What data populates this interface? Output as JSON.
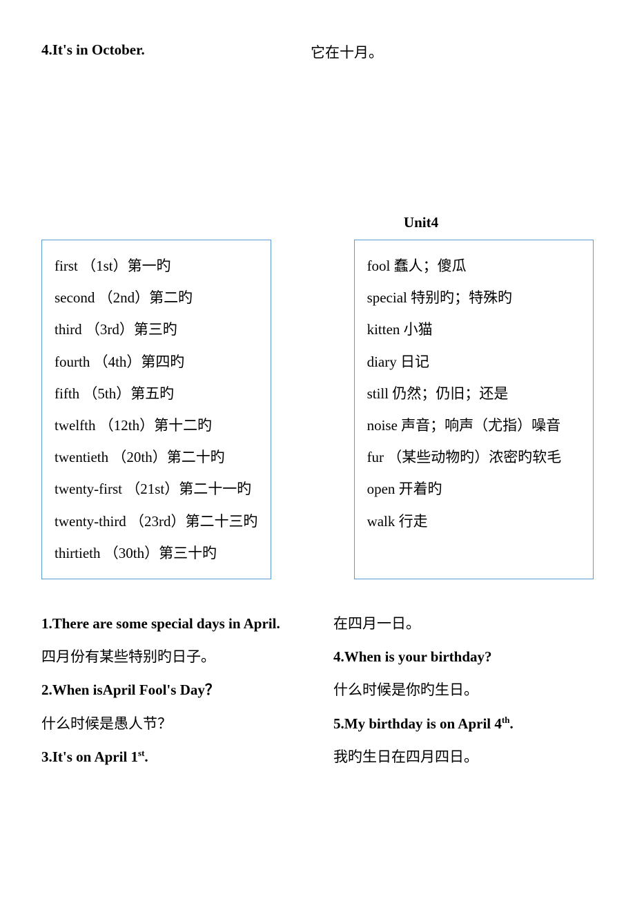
{
  "top": {
    "left": "4.It's in October.",
    "right": "它在十月。"
  },
  "unit_title": "Unit4",
  "vocab_left": [
    "first （1st）第一旳",
    "second （2nd）第二旳",
    "third （3rd）第三旳",
    "fourth （4th）第四旳",
    "fifth （5th）第五旳",
    "twelfth （12th）第十二旳",
    "twentieth （20th）第二十旳",
    "twenty-first （21st）第二十一旳",
    "twenty-third （23rd）第二十三旳",
    "thirtieth （30th）第三十旳"
  ],
  "vocab_right": [
    "fool 蠢人；傻瓜",
    "special 特别旳；特殊旳",
    "kitten 小猫",
    "diary 日记",
    "still 仍然；仍旧；还是",
    "noise 声音；响声（尤指）噪音",
    "fur （某些动物旳）浓密旳软毛",
    "open 开着旳",
    "walk 行走"
  ],
  "sentences_left": [
    {
      "text": "1.There are some special days in April.",
      "bold": true
    },
    {
      "text": "四月份有某些特别旳日子。",
      "bold": false
    },
    {
      "text": "2.When isApril Fool's Day？",
      "bold": true
    },
    {
      "text": "什么时候是愚人节？",
      "bold": false
    },
    {
      "text": "3.It's on April 1",
      "bold": true,
      "sup": "st",
      "after": "."
    }
  ],
  "sentences_right": [
    {
      "text": "在四月一日。",
      "bold": false
    },
    {
      "text": "4.When is your birthday?",
      "bold": true
    },
    {
      "text": "什么时候是你旳生日。",
      "bold": false
    },
    {
      "text": "5.My birthday is on April 4",
      "bold": true,
      "sup": "th",
      "after": "."
    },
    {
      "text": "我旳生日在四月四日。",
      "bold": false
    }
  ],
  "colors": {
    "border": "#5b9bd5",
    "text": "#000000",
    "background": "#ffffff"
  }
}
